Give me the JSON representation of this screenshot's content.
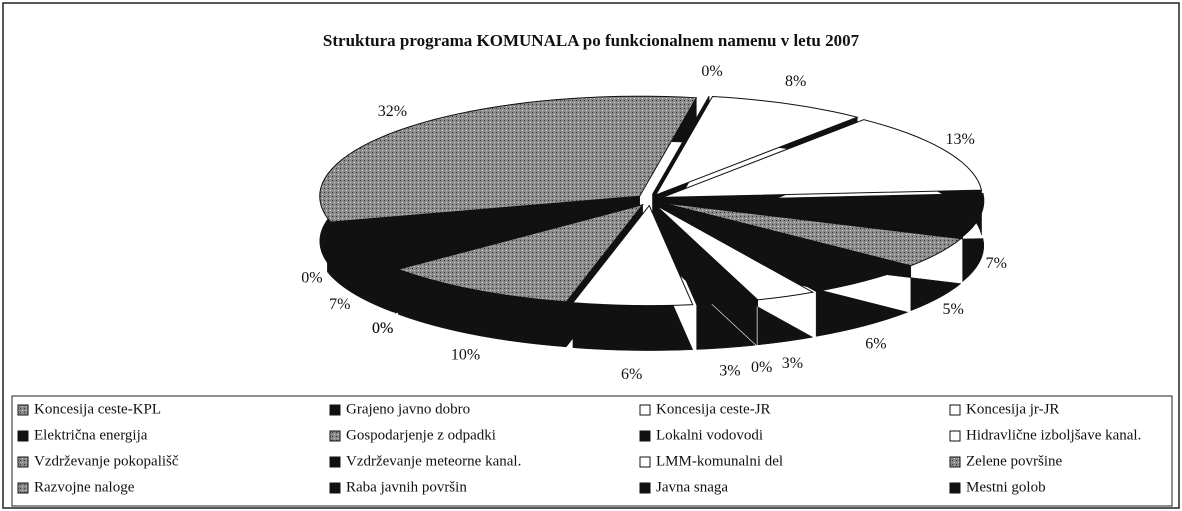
{
  "chart_data": {
    "type": "pie",
    "title": "Struktura programa KOMUNALA po funkcionalnem namenu v letu 2007",
    "categories": [
      "Koncesija ceste-KPL",
      "Grajeno javno dobro",
      "Koncesija ceste-JR",
      "Koncesija jr-JR",
      "Električna energija",
      "Gospodarjenje z odpadki",
      "Lokalni vodovodi",
      "Hidravlične izboljšave kanal.",
      "Vzdrževanje pokopališč",
      "Vzdrževanje meteorne kanal.",
      "LMM-komunalni del",
      "Zelene površine",
      "Razvojne naloge",
      "Raba javnih površin",
      "Javna snaga",
      "Mestni golob"
    ],
    "values": [
      32,
      0,
      8,
      13,
      7,
      5,
      6,
      3,
      0,
      3,
      6,
      10,
      0,
      0,
      7,
      0
    ],
    "colors": [
      "gray",
      "black",
      "white",
      "white",
      "black",
      "gray",
      "black",
      "white",
      "gray",
      "black",
      "white",
      "gray",
      "gray",
      "black",
      "black",
      "black"
    ]
  }
}
